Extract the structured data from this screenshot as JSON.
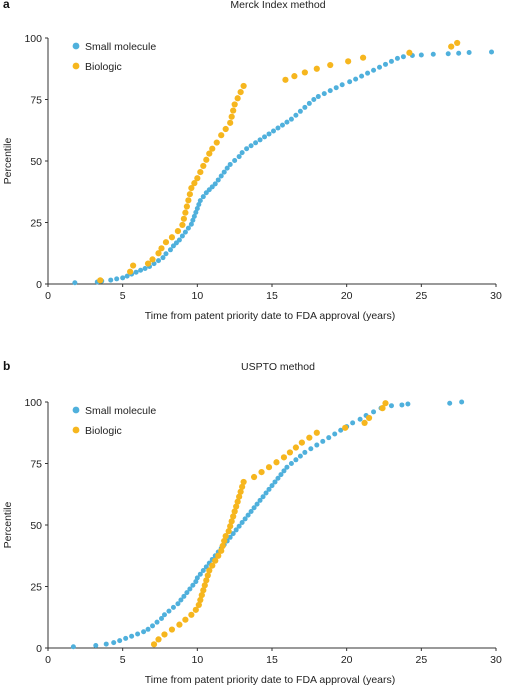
{
  "colors": {
    "small_molecule": "#4fb0dc",
    "biologic": "#f6b61e",
    "axis": "#333333"
  },
  "chart_data": [
    {
      "panel_label": "a",
      "type": "scatter",
      "title": "Merck Index method",
      "xlabel": "Time from patent priority date to FDA approval (years)",
      "ylabel": "Percentile",
      "xlim": [
        0,
        30
      ],
      "ylim": [
        0,
        100
      ],
      "xticks": [
        "0",
        "5",
        "10",
        "15",
        "20",
        "25",
        "30"
      ],
      "yticks": [
        "0",
        "25",
        "50",
        "75",
        "100"
      ],
      "grid": false,
      "legend_position": "top-left",
      "series": [
        {
          "name": "Small molecule",
          "color": "#4fb0dc",
          "points": [
            [
              1.8,
              0.5
            ],
            [
              3.3,
              0.8
            ],
            [
              3.6,
              1.2
            ],
            [
              4.2,
              1.6
            ],
            [
              4.6,
              2.1
            ],
            [
              5.0,
              2.5
            ],
            [
              5.3,
              3.2
            ],
            [
              5.6,
              4.0
            ],
            [
              5.9,
              4.8
            ],
            [
              6.2,
              5.6
            ],
            [
              6.5,
              6.3
            ],
            [
              6.8,
              7.1
            ],
            [
              7.1,
              8.3
            ],
            [
              7.4,
              9.5
            ],
            [
              7.7,
              10.7
            ],
            [
              7.9,
              12.3
            ],
            [
              8.2,
              13.9
            ],
            [
              8.4,
              15.5
            ],
            [
              8.6,
              16.7
            ],
            [
              8.8,
              17.9
            ],
            [
              9.0,
              19.5
            ],
            [
              9.2,
              21.1
            ],
            [
              9.4,
              22.7
            ],
            [
              9.6,
              24.3
            ],
            [
              9.7,
              25.9
            ],
            [
              9.8,
              27.5
            ],
            [
              9.9,
              29.1
            ],
            [
              10.0,
              30.7
            ],
            [
              10.1,
              32.3
            ],
            [
              10.2,
              33.9
            ],
            [
              10.4,
              35.5
            ],
            [
              10.6,
              37.1
            ],
            [
              10.8,
              38.3
            ],
            [
              11.0,
              39.5
            ],
            [
              11.2,
              40.7
            ],
            [
              11.4,
              42.3
            ],
            [
              11.6,
              43.9
            ],
            [
              11.8,
              45.5
            ],
            [
              12.0,
              47.1
            ],
            [
              12.2,
              48.6
            ],
            [
              12.5,
              50.2
            ],
            [
              12.8,
              51.8
            ],
            [
              13.0,
              53.4
            ],
            [
              13.3,
              55.0
            ],
            [
              13.6,
              56.2
            ],
            [
              13.9,
              57.4
            ],
            [
              14.2,
              58.6
            ],
            [
              14.5,
              59.8
            ],
            [
              14.8,
              61.0
            ],
            [
              15.1,
              62.2
            ],
            [
              15.4,
              63.4
            ],
            [
              15.7,
              64.6
            ],
            [
              16.0,
              65.8
            ],
            [
              16.3,
              67.0
            ],
            [
              16.6,
              68.6
            ],
            [
              16.9,
              70.2
            ],
            [
              17.2,
              71.8
            ],
            [
              17.5,
              73.4
            ],
            [
              17.8,
              75.0
            ],
            [
              18.1,
              76.2
            ],
            [
              18.5,
              77.4
            ],
            [
              18.9,
              78.6
            ],
            [
              19.3,
              79.8
            ],
            [
              19.7,
              81.0
            ],
            [
              20.2,
              82.2
            ],
            [
              20.6,
              83.3
            ],
            [
              21.0,
              84.5
            ],
            [
              21.4,
              85.7
            ],
            [
              21.8,
              86.9
            ],
            [
              22.2,
              88.1
            ],
            [
              22.6,
              89.3
            ],
            [
              23.0,
              90.5
            ],
            [
              23.4,
              91.7
            ],
            [
              23.8,
              92.4
            ],
            [
              24.4,
              92.9
            ],
            [
              25.0,
              93.1
            ],
            [
              25.8,
              93.4
            ],
            [
              26.8,
              93.6
            ],
            [
              27.5,
              93.8
            ],
            [
              28.2,
              94.1
            ],
            [
              29.7,
              94.3
            ]
          ]
        },
        {
          "name": "Biologic",
          "color": "#f6b61e",
          "points": [
            [
              3.5,
              1.5
            ],
            [
              5.5,
              5.0
            ],
            [
              5.7,
              7.5
            ],
            [
              6.7,
              8.3
            ],
            [
              7.0,
              10.0
            ],
            [
              7.4,
              12.5
            ],
            [
              7.6,
              14.5
            ],
            [
              7.9,
              17.0
            ],
            [
              8.3,
              19.0
            ],
            [
              8.7,
              21.5
            ],
            [
              9.0,
              24.0
            ],
            [
              9.1,
              26.5
            ],
            [
              9.2,
              29.0
            ],
            [
              9.3,
              31.5
            ],
            [
              9.4,
              34.0
            ],
            [
              9.5,
              36.5
            ],
            [
              9.6,
              39.0
            ],
            [
              9.8,
              41.0
            ],
            [
              10.0,
              43.0
            ],
            [
              10.2,
              45.5
            ],
            [
              10.4,
              48.0
            ],
            [
              10.6,
              50.5
            ],
            [
              10.8,
              53.0
            ],
            [
              11.0,
              55.0
            ],
            [
              11.3,
              57.5
            ],
            [
              11.6,
              60.5
            ],
            [
              11.9,
              63.0
            ],
            [
              12.2,
              65.5
            ],
            [
              12.3,
              68.0
            ],
            [
              12.4,
              70.5
            ],
            [
              12.5,
              73.0
            ],
            [
              12.7,
              75.5
            ],
            [
              12.9,
              78.0
            ],
            [
              13.1,
              80.5
            ],
            [
              15.9,
              83.0
            ],
            [
              16.5,
              84.5
            ],
            [
              17.2,
              86.0
            ],
            [
              18.0,
              87.5
            ],
            [
              18.9,
              89.0
            ],
            [
              20.1,
              90.5
            ],
            [
              21.1,
              92.0
            ],
            [
              24.2,
              94.0
            ],
            [
              27.0,
              96.5
            ],
            [
              27.4,
              98.0
            ]
          ]
        }
      ]
    },
    {
      "panel_label": "b",
      "type": "scatter",
      "title": "USPTO method",
      "xlabel": "Time from patent priority date to FDA approval (years)",
      "ylabel": "Percentile",
      "xlim": [
        0,
        30
      ],
      "ylim": [
        0,
        100
      ],
      "xticks": [
        "0",
        "5",
        "10",
        "15",
        "20",
        "25",
        "30"
      ],
      "yticks": [
        "0",
        "25",
        "50",
        "75",
        "100"
      ],
      "grid": false,
      "legend_position": "top-left",
      "series": [
        {
          "name": "Small molecule",
          "color": "#4fb0dc",
          "points": [
            [
              1.7,
              0.5
            ],
            [
              3.2,
              1.0
            ],
            [
              3.9,
              1.6
            ],
            [
              4.4,
              2.2
            ],
            [
              4.8,
              3.0
            ],
            [
              5.2,
              3.9
            ],
            [
              5.6,
              4.8
            ],
            [
              6.0,
              5.7
            ],
            [
              6.4,
              6.6
            ],
            [
              6.7,
              7.6
            ],
            [
              7.0,
              9.0
            ],
            [
              7.3,
              10.5
            ],
            [
              7.6,
              12.0
            ],
            [
              7.8,
              13.5
            ],
            [
              8.1,
              15.0
            ],
            [
              8.4,
              16.5
            ],
            [
              8.7,
              18.0
            ],
            [
              8.9,
              19.5
            ],
            [
              9.1,
              21.0
            ],
            [
              9.3,
              22.5
            ],
            [
              9.5,
              24.0
            ],
            [
              9.7,
              25.5
            ],
            [
              9.9,
              27.0
            ],
            [
              10.0,
              28.5
            ],
            [
              10.2,
              30.0
            ],
            [
              10.4,
              31.5
            ],
            [
              10.6,
              33.0
            ],
            [
              10.8,
              34.5
            ],
            [
              11.0,
              36.0
            ],
            [
              11.2,
              37.5
            ],
            [
              11.4,
              39.0
            ],
            [
              11.6,
              40.5
            ],
            [
              11.8,
              42.0
            ],
            [
              12.0,
              43.5
            ],
            [
              12.2,
              45.0
            ],
            [
              12.4,
              46.5
            ],
            [
              12.6,
              48.0
            ],
            [
              12.8,
              49.5
            ],
            [
              13.0,
              51.0
            ],
            [
              13.2,
              52.5
            ],
            [
              13.4,
              54.0
            ],
            [
              13.6,
              55.5
            ],
            [
              13.8,
              57.0
            ],
            [
              14.0,
              58.5
            ],
            [
              14.2,
              60.0
            ],
            [
              14.4,
              61.5
            ],
            [
              14.6,
              63.0
            ],
            [
              14.8,
              64.5
            ],
            [
              15.0,
              66.0
            ],
            [
              15.2,
              67.5
            ],
            [
              15.4,
              69.0
            ],
            [
              15.6,
              70.5
            ],
            [
              15.8,
              72.0
            ],
            [
              16.0,
              73.5
            ],
            [
              16.3,
              75.0
            ],
            [
              16.6,
              76.5
            ],
            [
              16.9,
              78.0
            ],
            [
              17.2,
              79.5
            ],
            [
              17.6,
              81.0
            ],
            [
              18.0,
              82.5
            ],
            [
              18.4,
              84.0
            ],
            [
              18.8,
              85.5
            ],
            [
              19.2,
              87.0
            ],
            [
              19.6,
              88.5
            ],
            [
              20.0,
              90.0
            ],
            [
              20.4,
              91.5
            ],
            [
              20.9,
              93.0
            ],
            [
              21.3,
              94.5
            ],
            [
              21.8,
              96.0
            ],
            [
              22.3,
              97.5
            ],
            [
              23.0,
              98.5
            ],
            [
              23.7,
              98.8
            ],
            [
              24.1,
              99.2
            ],
            [
              26.9,
              99.5
            ],
            [
              27.7,
              100.0
            ]
          ]
        },
        {
          "name": "Biologic",
          "color": "#f6b61e",
          "points": [
            [
              7.1,
              1.5
            ],
            [
              7.4,
              3.5
            ],
            [
              7.8,
              5.5
            ],
            [
              8.3,
              7.5
            ],
            [
              8.8,
              9.5
            ],
            [
              9.2,
              11.5
            ],
            [
              9.6,
              13.5
            ],
            [
              9.9,
              15.5
            ],
            [
              10.1,
              17.5
            ],
            [
              10.2,
              19.5
            ],
            [
              10.3,
              21.5
            ],
            [
              10.4,
              23.5
            ],
            [
              10.5,
              25.5
            ],
            [
              10.6,
              27.5
            ],
            [
              10.7,
              29.5
            ],
            [
              10.8,
              31.5
            ],
            [
              11.0,
              33.5
            ],
            [
              11.2,
              35.5
            ],
            [
              11.4,
              37.5
            ],
            [
              11.6,
              39.5
            ],
            [
              11.7,
              41.5
            ],
            [
              11.8,
              43.5
            ],
            [
              11.9,
              45.5
            ],
            [
              12.1,
              47.5
            ],
            [
              12.2,
              49.5
            ],
            [
              12.3,
              51.5
            ],
            [
              12.4,
              53.5
            ],
            [
              12.5,
              55.5
            ],
            [
              12.6,
              57.5
            ],
            [
              12.7,
              59.5
            ],
            [
              12.8,
              61.5
            ],
            [
              12.9,
              63.5
            ],
            [
              13.0,
              65.5
            ],
            [
              13.1,
              67.5
            ],
            [
              13.8,
              69.5
            ],
            [
              14.3,
              71.5
            ],
            [
              14.8,
              73.5
            ],
            [
              15.3,
              75.5
            ],
            [
              15.8,
              77.5
            ],
            [
              16.2,
              79.5
            ],
            [
              16.6,
              81.5
            ],
            [
              17.0,
              83.5
            ],
            [
              17.5,
              85.5
            ],
            [
              18.0,
              87.5
            ],
            [
              19.9,
              89.5
            ],
            [
              21.2,
              91.5
            ],
            [
              21.5,
              93.5
            ],
            [
              22.4,
              97.5
            ],
            [
              22.6,
              99.5
            ]
          ]
        }
      ]
    }
  ]
}
